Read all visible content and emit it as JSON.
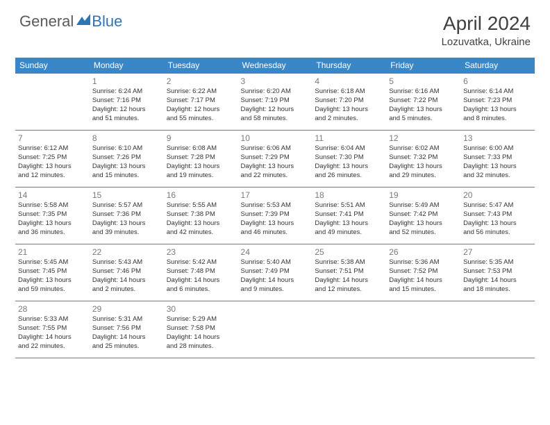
{
  "brand": {
    "part1": "General",
    "part2": "Blue"
  },
  "title": "April 2024",
  "location": "Lozuvatka, Ukraine",
  "colors": {
    "header_bg": "#3a87c8",
    "header_text": "#ffffff",
    "border": "#3a87c8",
    "daynum": "#7a7a7a",
    "body_text": "#333333",
    "brand_gray": "#5a5a5a",
    "brand_blue": "#2e75b6",
    "title_color": "#404040"
  },
  "days_of_week": [
    "Sunday",
    "Monday",
    "Tuesday",
    "Wednesday",
    "Thursday",
    "Friday",
    "Saturday"
  ],
  "weeks": [
    [
      null,
      {
        "n": "1",
        "l1": "Sunrise: 6:24 AM",
        "l2": "Sunset: 7:16 PM",
        "l3": "Daylight: 12 hours",
        "l4": "and 51 minutes."
      },
      {
        "n": "2",
        "l1": "Sunrise: 6:22 AM",
        "l2": "Sunset: 7:17 PM",
        "l3": "Daylight: 12 hours",
        "l4": "and 55 minutes."
      },
      {
        "n": "3",
        "l1": "Sunrise: 6:20 AM",
        "l2": "Sunset: 7:19 PM",
        "l3": "Daylight: 12 hours",
        "l4": "and 58 minutes."
      },
      {
        "n": "4",
        "l1": "Sunrise: 6:18 AM",
        "l2": "Sunset: 7:20 PM",
        "l3": "Daylight: 13 hours",
        "l4": "and 2 minutes."
      },
      {
        "n": "5",
        "l1": "Sunrise: 6:16 AM",
        "l2": "Sunset: 7:22 PM",
        "l3": "Daylight: 13 hours",
        "l4": "and 5 minutes."
      },
      {
        "n": "6",
        "l1": "Sunrise: 6:14 AM",
        "l2": "Sunset: 7:23 PM",
        "l3": "Daylight: 13 hours",
        "l4": "and 8 minutes."
      }
    ],
    [
      {
        "n": "7",
        "l1": "Sunrise: 6:12 AM",
        "l2": "Sunset: 7:25 PM",
        "l3": "Daylight: 13 hours",
        "l4": "and 12 minutes."
      },
      {
        "n": "8",
        "l1": "Sunrise: 6:10 AM",
        "l2": "Sunset: 7:26 PM",
        "l3": "Daylight: 13 hours",
        "l4": "and 15 minutes."
      },
      {
        "n": "9",
        "l1": "Sunrise: 6:08 AM",
        "l2": "Sunset: 7:28 PM",
        "l3": "Daylight: 13 hours",
        "l4": "and 19 minutes."
      },
      {
        "n": "10",
        "l1": "Sunrise: 6:06 AM",
        "l2": "Sunset: 7:29 PM",
        "l3": "Daylight: 13 hours",
        "l4": "and 22 minutes."
      },
      {
        "n": "11",
        "l1": "Sunrise: 6:04 AM",
        "l2": "Sunset: 7:30 PM",
        "l3": "Daylight: 13 hours",
        "l4": "and 26 minutes."
      },
      {
        "n": "12",
        "l1": "Sunrise: 6:02 AM",
        "l2": "Sunset: 7:32 PM",
        "l3": "Daylight: 13 hours",
        "l4": "and 29 minutes."
      },
      {
        "n": "13",
        "l1": "Sunrise: 6:00 AM",
        "l2": "Sunset: 7:33 PM",
        "l3": "Daylight: 13 hours",
        "l4": "and 32 minutes."
      }
    ],
    [
      {
        "n": "14",
        "l1": "Sunrise: 5:58 AM",
        "l2": "Sunset: 7:35 PM",
        "l3": "Daylight: 13 hours",
        "l4": "and 36 minutes."
      },
      {
        "n": "15",
        "l1": "Sunrise: 5:57 AM",
        "l2": "Sunset: 7:36 PM",
        "l3": "Daylight: 13 hours",
        "l4": "and 39 minutes."
      },
      {
        "n": "16",
        "l1": "Sunrise: 5:55 AM",
        "l2": "Sunset: 7:38 PM",
        "l3": "Daylight: 13 hours",
        "l4": "and 42 minutes."
      },
      {
        "n": "17",
        "l1": "Sunrise: 5:53 AM",
        "l2": "Sunset: 7:39 PM",
        "l3": "Daylight: 13 hours",
        "l4": "and 46 minutes."
      },
      {
        "n": "18",
        "l1": "Sunrise: 5:51 AM",
        "l2": "Sunset: 7:41 PM",
        "l3": "Daylight: 13 hours",
        "l4": "and 49 minutes."
      },
      {
        "n": "19",
        "l1": "Sunrise: 5:49 AM",
        "l2": "Sunset: 7:42 PM",
        "l3": "Daylight: 13 hours",
        "l4": "and 52 minutes."
      },
      {
        "n": "20",
        "l1": "Sunrise: 5:47 AM",
        "l2": "Sunset: 7:43 PM",
        "l3": "Daylight: 13 hours",
        "l4": "and 56 minutes."
      }
    ],
    [
      {
        "n": "21",
        "l1": "Sunrise: 5:45 AM",
        "l2": "Sunset: 7:45 PM",
        "l3": "Daylight: 13 hours",
        "l4": "and 59 minutes."
      },
      {
        "n": "22",
        "l1": "Sunrise: 5:43 AM",
        "l2": "Sunset: 7:46 PM",
        "l3": "Daylight: 14 hours",
        "l4": "and 2 minutes."
      },
      {
        "n": "23",
        "l1": "Sunrise: 5:42 AM",
        "l2": "Sunset: 7:48 PM",
        "l3": "Daylight: 14 hours",
        "l4": "and 6 minutes."
      },
      {
        "n": "24",
        "l1": "Sunrise: 5:40 AM",
        "l2": "Sunset: 7:49 PM",
        "l3": "Daylight: 14 hours",
        "l4": "and 9 minutes."
      },
      {
        "n": "25",
        "l1": "Sunrise: 5:38 AM",
        "l2": "Sunset: 7:51 PM",
        "l3": "Daylight: 14 hours",
        "l4": "and 12 minutes."
      },
      {
        "n": "26",
        "l1": "Sunrise: 5:36 AM",
        "l2": "Sunset: 7:52 PM",
        "l3": "Daylight: 14 hours",
        "l4": "and 15 minutes."
      },
      {
        "n": "27",
        "l1": "Sunrise: 5:35 AM",
        "l2": "Sunset: 7:53 PM",
        "l3": "Daylight: 14 hours",
        "l4": "and 18 minutes."
      }
    ],
    [
      {
        "n": "28",
        "l1": "Sunrise: 5:33 AM",
        "l2": "Sunset: 7:55 PM",
        "l3": "Daylight: 14 hours",
        "l4": "and 22 minutes."
      },
      {
        "n": "29",
        "l1": "Sunrise: 5:31 AM",
        "l2": "Sunset: 7:56 PM",
        "l3": "Daylight: 14 hours",
        "l4": "and 25 minutes."
      },
      {
        "n": "30",
        "l1": "Sunrise: 5:29 AM",
        "l2": "Sunset: 7:58 PM",
        "l3": "Daylight: 14 hours",
        "l4": "and 28 minutes."
      },
      null,
      null,
      null,
      null
    ]
  ]
}
